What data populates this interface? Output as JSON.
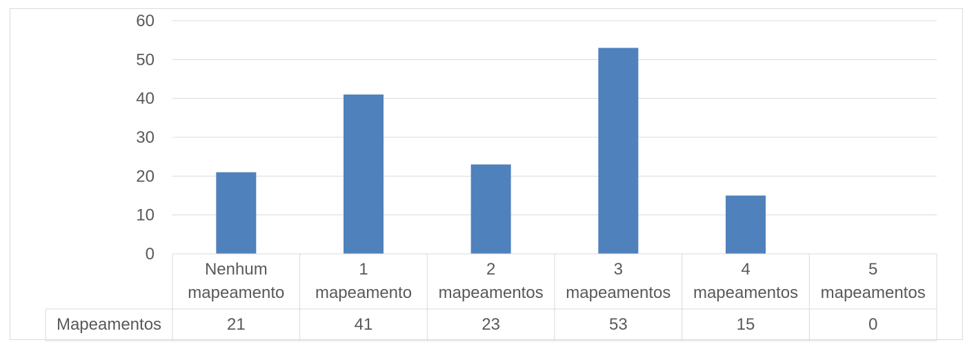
{
  "chart_data": {
    "type": "bar",
    "categories": [
      "Nenhum mapeamento",
      "1 mapeamento",
      "2 mapeamentos",
      "3 mapeamentos",
      "4 mapeamentos",
      "5 mapeamentos"
    ],
    "category_lines": [
      [
        "Nenhum",
        "mapeamento"
      ],
      [
        "1",
        "mapeamento"
      ],
      [
        "2",
        "mapeamentos"
      ],
      [
        "3",
        "mapeamentos"
      ],
      [
        "4",
        "mapeamentos"
      ],
      [
        "5",
        "mapeamentos"
      ]
    ],
    "series": [
      {
        "name": "Mapeamentos",
        "values": [
          21,
          41,
          23,
          53,
          15,
          0
        ],
        "color": "#4f81bd"
      }
    ],
    "ylim": [
      0,
      60
    ],
    "yticks": [
      0,
      10,
      20,
      30,
      40,
      50,
      60
    ],
    "grid": true,
    "data_table": true
  }
}
